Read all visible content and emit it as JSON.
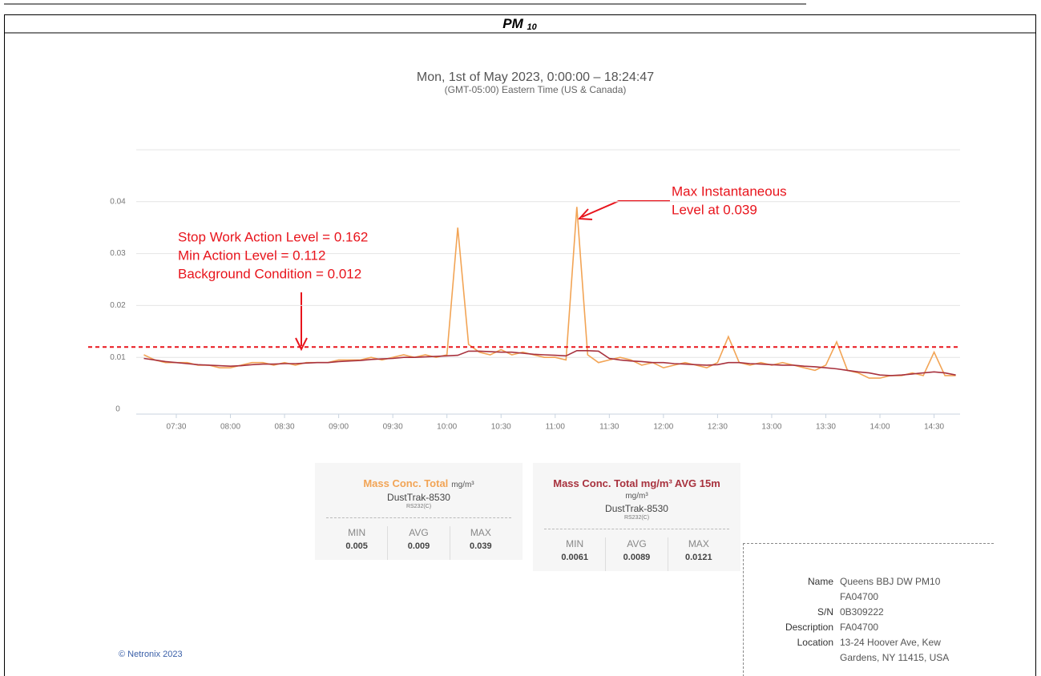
{
  "header": {
    "title": "PM",
    "subscript": "10"
  },
  "chart_data": {
    "type": "line",
    "title": "Mon, 1st of May 2023, 0:00:00 – 18:24:47",
    "subtitle": "(GMT-05:00) Eastern Time (US & Canada)",
    "x": [
      7.2,
      7.3,
      7.4,
      7.5,
      7.6,
      7.7,
      7.8,
      7.9,
      8.0,
      8.1,
      8.2,
      8.3,
      8.4,
      8.5,
      8.6,
      8.7,
      8.8,
      8.9,
      9.0,
      9.1,
      9.2,
      9.3,
      9.4,
      9.5,
      9.6,
      9.7,
      9.8,
      9.9,
      10.0,
      10.1,
      10.2,
      10.3,
      10.4,
      10.5,
      10.6,
      10.7,
      10.8,
      10.9,
      11.0,
      11.1,
      11.2,
      11.3,
      11.4,
      11.5,
      11.6,
      11.7,
      11.8,
      11.9,
      12.0,
      12.1,
      12.2,
      12.3,
      12.4,
      12.5,
      12.6,
      12.7,
      12.8,
      12.9,
      13.0,
      13.1,
      13.2,
      13.3,
      13.4,
      13.5,
      13.6,
      13.7,
      13.8,
      13.9,
      14.0,
      14.1,
      14.2,
      14.3,
      14.4,
      14.5,
      14.6,
      14.7
    ],
    "series": [
      {
        "name": "Mass Conc. Total",
        "color": "#f2a455",
        "values": [
          0.0105,
          0.0095,
          0.009,
          0.009,
          0.009,
          0.0085,
          0.0085,
          0.008,
          0.008,
          0.0085,
          0.009,
          0.009,
          0.0085,
          0.009,
          0.0085,
          0.009,
          0.009,
          0.009,
          0.0095,
          0.0095,
          0.0095,
          0.01,
          0.0095,
          0.01,
          0.0105,
          0.01,
          0.0105,
          0.01,
          0.0105,
          0.035,
          0.0125,
          0.011,
          0.0105,
          0.0115,
          0.0105,
          0.011,
          0.0105,
          0.01,
          0.01,
          0.0095,
          0.039,
          0.0105,
          0.009,
          0.0095,
          0.01,
          0.0095,
          0.0085,
          0.009,
          0.008,
          0.0085,
          0.009,
          0.0085,
          0.008,
          0.009,
          0.014,
          0.009,
          0.0085,
          0.009,
          0.0085,
          0.009,
          0.0085,
          0.008,
          0.0075,
          0.0085,
          0.013,
          0.0075,
          0.007,
          0.006,
          0.006,
          0.0065,
          0.0065,
          0.007,
          0.0065,
          0.011,
          0.0065,
          0.0065
        ]
      },
      {
        "name": "Mass Conc. Total mg/m³ AVG 15m",
        "color": "#a8323e",
        "values": [
          0.0098,
          0.0095,
          0.0092,
          0.009,
          0.0088,
          0.0086,
          0.0085,
          0.0084,
          0.0083,
          0.0084,
          0.0086,
          0.0087,
          0.0087,
          0.0088,
          0.0088,
          0.0089,
          0.009,
          0.009,
          0.0092,
          0.0093,
          0.0094,
          0.0096,
          0.0097,
          0.0098,
          0.01,
          0.01,
          0.0101,
          0.0102,
          0.0103,
          0.0104,
          0.0112,
          0.0112,
          0.0111,
          0.011,
          0.011,
          0.0108,
          0.0106,
          0.0105,
          0.0104,
          0.0103,
          0.0113,
          0.0113,
          0.0112,
          0.0098,
          0.0095,
          0.0093,
          0.0092,
          0.009,
          0.009,
          0.0088,
          0.0087,
          0.0086,
          0.0085,
          0.0086,
          0.009,
          0.009,
          0.0088,
          0.0087,
          0.0086,
          0.0085,
          0.0085,
          0.0083,
          0.0082,
          0.008,
          0.0078,
          0.0075,
          0.0072,
          0.007,
          0.0066,
          0.0065,
          0.0066,
          0.0068,
          0.007,
          0.0072,
          0.007,
          0.0066
        ]
      }
    ],
    "xlim": [
      7.13,
      14.74
    ],
    "xticks": [
      {
        "value": 7.5,
        "label": "07:30"
      },
      {
        "value": 8,
        "label": "08:00"
      },
      {
        "value": 8.5,
        "label": "08:30"
      },
      {
        "value": 9,
        "label": "09:00"
      },
      {
        "value": 9.5,
        "label": "09:30"
      },
      {
        "value": 10,
        "label": "10:00"
      },
      {
        "value": 10.5,
        "label": "10:30"
      },
      {
        "value": 11,
        "label": "11:00"
      },
      {
        "value": 11.5,
        "label": "11:30"
      },
      {
        "value": 12,
        "label": "12:00"
      },
      {
        "value": 12.5,
        "label": "12:30"
      },
      {
        "value": 13,
        "label": "13:00"
      },
      {
        "value": 13.5,
        "label": "13:30"
      },
      {
        "value": 14,
        "label": "14:00"
      },
      {
        "value": 14.5,
        "label": "14:30"
      }
    ],
    "ylim": [
      0,
      0.05
    ],
    "yticks": [
      0,
      0.01,
      0.02,
      0.03,
      0.04
    ],
    "grid": true,
    "reference_line": {
      "value": 0.012,
      "color": "#e8141c"
    },
    "annotations": [
      {
        "lines": [
          "Stop Work Action Level = 0.162",
          "Min Action Level  = 0.112",
          "Background Condition = 0.012"
        ]
      },
      {
        "lines": [
          "Max Instantaneous",
          "Level at 0.039"
        ]
      }
    ]
  },
  "stats": [
    {
      "title": "Mass Conc. Total",
      "unit": "mg/m³",
      "device": "DustTrak-8530",
      "port": "RS232(C)",
      "labels": [
        "MIN",
        "AVG",
        "MAX"
      ],
      "values": [
        "0.005",
        "0.009",
        "0.039"
      ]
    },
    {
      "title": "Mass Conc. Total mg/m³ AVG 15m",
      "unit": "mg/m³",
      "device": "DustTrak-8530",
      "port": "RS232(C)",
      "labels": [
        "MIN",
        "AVG",
        "MAX"
      ],
      "values": [
        "0.0061",
        "0.0089",
        "0.0121"
      ]
    }
  ],
  "info": [
    {
      "key": "Name",
      "value": "Queens BBJ DW PM10 FA04700"
    },
    {
      "key": "S/N",
      "value": "0B309222"
    },
    {
      "key": "Description",
      "value": "FA04700"
    },
    {
      "key": "Location",
      "value": "13-24 Hoover Ave, Kew Gardens, NY 11415, USA"
    }
  ],
  "footer": "© Netronix 2023"
}
